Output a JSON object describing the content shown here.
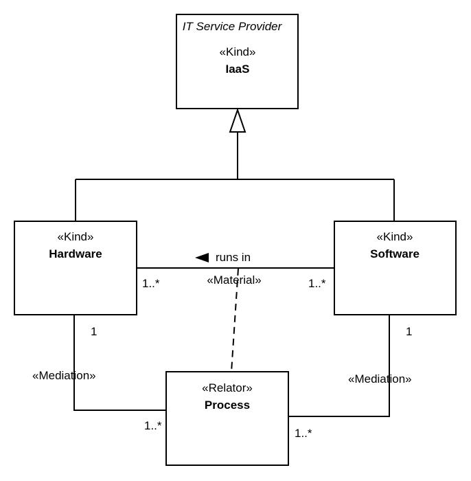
{
  "diagram": {
    "iaas": {
      "package": "IT Service Provider",
      "stereotype": "«Kind»",
      "name": "IaaS"
    },
    "hardware": {
      "stereotype": "«Kind»",
      "name": "Hardware"
    },
    "software": {
      "stereotype": "«Kind»",
      "name": "Software"
    },
    "process": {
      "stereotype": "«Relator»",
      "name": "Process"
    },
    "material_relation": {
      "label": "runs in",
      "stereotype": "«Material»",
      "mult_hardware": "1..*",
      "mult_software": "1..*"
    },
    "mediation_hardware": {
      "stereotype": "«Mediation»",
      "mult_hardware": "1",
      "mult_process": "1..*"
    },
    "mediation_software": {
      "stereotype": "«Mediation»",
      "mult_software": "1",
      "mult_process": "1..*"
    },
    "colors": {
      "stroke": "#000000",
      "background": "#ffffff"
    }
  }
}
